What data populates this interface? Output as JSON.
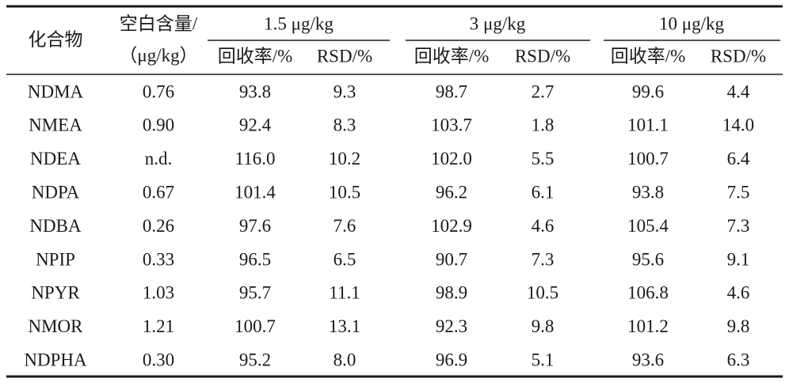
{
  "table": {
    "header": {
      "compound": "化合物",
      "blank": [
        "空白含量/",
        "（μg/kg）"
      ],
      "groups": [
        "1.5 μg/kg",
        "3 μg/kg",
        "10 μg/kg"
      ],
      "subheaders": [
        "回收率/%",
        "RSD/%",
        "回收率/%",
        "RSD/%",
        "回收率/%",
        "RSD/%"
      ]
    },
    "rows": [
      [
        "NDMA",
        "0.76",
        "93.8",
        "9.3",
        "98.7",
        "2.7",
        "99.6",
        "4.4"
      ],
      [
        "NMEA",
        "0.90",
        "92.4",
        "8.3",
        "103.7",
        "1.8",
        "101.1",
        "14.0"
      ],
      [
        "NDEA",
        "n.d.",
        "116.0",
        "10.2",
        "102.0",
        "5.5",
        "100.7",
        "6.4"
      ],
      [
        "NDPA",
        "0.67",
        "101.4",
        "10.5",
        "96.2",
        "6.1",
        "93.8",
        "7.5"
      ],
      [
        "NDBA",
        "0.26",
        "97.6",
        "7.6",
        "102.9",
        "4.6",
        "105.4",
        "7.3"
      ],
      [
        "NPIP",
        "0.33",
        "96.5",
        "6.5",
        "90.7",
        "7.3",
        "95.6",
        "9.1"
      ],
      [
        "NPYR",
        "1.03",
        "95.7",
        "11.1",
        "98.9",
        "10.5",
        "106.8",
        "4.6"
      ],
      [
        "NMOR",
        "1.21",
        "100.7",
        "13.1",
        "92.3",
        "9.8",
        "101.2",
        "9.8"
      ],
      [
        "NDPHA",
        "0.30",
        "95.2",
        "8.0",
        "96.9",
        "5.1",
        "93.6",
        "6.3"
      ]
    ]
  }
}
